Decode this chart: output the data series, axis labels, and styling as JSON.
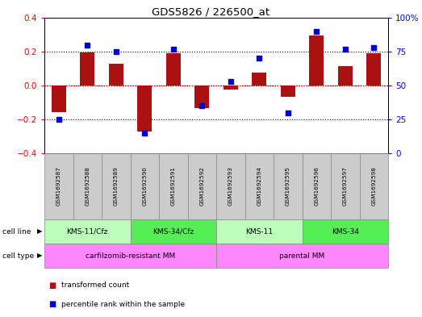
{
  "title": "GDS5826 / 226500_at",
  "samples": [
    "GSM1692587",
    "GSM1692588",
    "GSM1692589",
    "GSM1692590",
    "GSM1692591",
    "GSM1692592",
    "GSM1692593",
    "GSM1692594",
    "GSM1692595",
    "GSM1692596",
    "GSM1692597",
    "GSM1692598"
  ],
  "transformed_count": [
    -0.155,
    0.195,
    0.13,
    -0.27,
    0.19,
    -0.135,
    -0.025,
    0.075,
    -0.065,
    0.295,
    0.115,
    0.19
  ],
  "percentile_rank": [
    25,
    80,
    75,
    15,
    77,
    35,
    53,
    70,
    30,
    90,
    77,
    78
  ],
  "cell_lines": [
    {
      "label": "KMS-11/Cfz",
      "start": 0,
      "end": 3,
      "color": "#bbffbb"
    },
    {
      "label": "KMS-34/Cfz",
      "start": 3,
      "end": 6,
      "color": "#55ee55"
    },
    {
      "label": "KMS-11",
      "start": 6,
      "end": 9,
      "color": "#bbffbb"
    },
    {
      "label": "KMS-34",
      "start": 9,
      "end": 12,
      "color": "#55ee55"
    }
  ],
  "cell_type_groups": [
    {
      "label": "carfilzomib-resistant MM",
      "start": 0,
      "end": 6
    },
    {
      "label": "parental MM",
      "start": 6,
      "end": 12
    }
  ],
  "cell_type_color": "#ff88ff",
  "bar_color": "#aa1111",
  "dot_color": "#0000cc",
  "sample_box_color": "#cccccc",
  "ylim_left": [
    -0.4,
    0.4
  ],
  "ylim_right": [
    0,
    100
  ],
  "yticks_left": [
    -0.4,
    -0.2,
    0.0,
    0.2,
    0.4
  ],
  "yticks_right": [
    0,
    25,
    50,
    75,
    100
  ],
  "ytick_labels_right": [
    "0",
    "25",
    "50",
    "75",
    "100%"
  ],
  "hlines_black": [
    -0.2,
    0.2
  ],
  "bar_width": 0.5,
  "background_color": "#ffffff"
}
